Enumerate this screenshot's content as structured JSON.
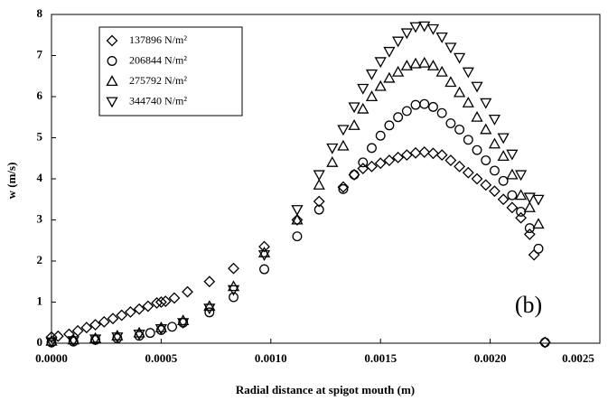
{
  "chart_data": {
    "type": "scatter",
    "y_label": "w (m/s)",
    "x_label": "Radial distance at spigot mouth (m)",
    "annotation": "(b)",
    "xlim": [
      0,
      0.0025
    ],
    "xticks": [
      {
        "value": 0,
        "label": "0.0000"
      },
      {
        "value": 0.0005,
        "label": "0.0005"
      },
      {
        "value": 0.001,
        "label": "0.0010"
      },
      {
        "value": 0.0015,
        "label": "0.0015"
      },
      {
        "value": 0.002,
        "label": "0.0020"
      },
      {
        "value": 0.0025,
        "label": "0.0025"
      }
    ],
    "ylim": [
      0,
      8
    ],
    "yticks": [
      0,
      1,
      2,
      3,
      4,
      5,
      6,
      7,
      8
    ],
    "legend": "top-left",
    "series": [
      {
        "name": "137896 N/m²",
        "color": "#000000",
        "marker": "diamond",
        "x": [
          0,
          3e-05,
          8e-05,
          0.00012,
          0.00016,
          0.0002,
          0.00024,
          0.00028,
          0.00032,
          0.00036,
          0.0004,
          0.00044,
          0.00048,
          0.0005,
          0.00052,
          0.00056,
          0.00062,
          0.00072,
          0.00083,
          0.00097,
          0.00112,
          0.00122,
          0.00133,
          0.00138,
          0.00142,
          0.00146,
          0.0015,
          0.00154,
          0.00158,
          0.00162,
          0.00166,
          0.0017,
          0.00174,
          0.00178,
          0.00182,
          0.00186,
          0.0019,
          0.00194,
          0.00198,
          0.00202,
          0.00206,
          0.0021,
          0.00214,
          0.00218,
          0.0022,
          0.00225
        ],
        "values": [
          0.15,
          0.17,
          0.22,
          0.3,
          0.38,
          0.45,
          0.52,
          0.6,
          0.68,
          0.76,
          0.83,
          0.9,
          0.98,
          1.0,
          1.02,
          1.1,
          1.25,
          1.5,
          1.82,
          2.35,
          3.0,
          3.45,
          3.8,
          4.1,
          4.25,
          4.3,
          4.38,
          4.45,
          4.52,
          4.58,
          4.63,
          4.65,
          4.62,
          4.58,
          4.45,
          4.3,
          4.15,
          4.0,
          3.85,
          3.7,
          3.5,
          3.3,
          3.05,
          2.65,
          2.15,
          0.02
        ]
      },
      {
        "name": "206844 N/m²",
        "color": "#000000",
        "marker": "circle",
        "x": [
          0,
          0.0001,
          0.0002,
          0.0003,
          0.0004,
          0.00045,
          0.0005,
          0.00055,
          0.0006,
          0.00072,
          0.00083,
          0.00097,
          0.00112,
          0.00122,
          0.00133,
          0.00138,
          0.00142,
          0.00146,
          0.0015,
          0.00154,
          0.00158,
          0.00162,
          0.00166,
          0.0017,
          0.00174,
          0.00178,
          0.00182,
          0.00186,
          0.0019,
          0.00194,
          0.00198,
          0.00202,
          0.00206,
          0.0021,
          0.00214,
          0.00218,
          0.00222,
          0.00225
        ],
        "values": [
          0.02,
          0.04,
          0.08,
          0.12,
          0.18,
          0.25,
          0.32,
          0.4,
          0.5,
          0.75,
          1.12,
          1.8,
          2.6,
          3.25,
          3.75,
          4.1,
          4.4,
          4.75,
          5.05,
          5.3,
          5.5,
          5.65,
          5.8,
          5.82,
          5.75,
          5.6,
          5.35,
          5.2,
          4.95,
          4.7,
          4.45,
          4.2,
          3.95,
          3.6,
          3.2,
          2.8,
          2.3,
          0.02
        ]
      },
      {
        "name": "275792 N/m²",
        "color": "#000000",
        "marker": "triangle-up",
        "x": [
          0,
          0.0001,
          0.0002,
          0.0003,
          0.0004,
          0.0005,
          0.0006,
          0.00072,
          0.00083,
          0.00097,
          0.00112,
          0.00122,
          0.00128,
          0.00133,
          0.00138,
          0.00142,
          0.00146,
          0.0015,
          0.00154,
          0.00158,
          0.00162,
          0.00166,
          0.0017,
          0.00174,
          0.00178,
          0.00182,
          0.00186,
          0.0019,
          0.00194,
          0.00198,
          0.00202,
          0.00206,
          0.0021,
          0.00214,
          0.00218,
          0.00222
        ],
        "values": [
          0.05,
          0.08,
          0.12,
          0.18,
          0.25,
          0.38,
          0.55,
          0.9,
          1.38,
          2.2,
          3.0,
          3.85,
          4.4,
          4.8,
          5.3,
          5.7,
          6.0,
          6.25,
          6.45,
          6.6,
          6.75,
          6.8,
          6.82,
          6.75,
          6.6,
          6.35,
          6.1,
          5.85,
          5.5,
          5.2,
          4.85,
          4.55,
          4.1,
          3.6,
          3.3,
          2.9
        ]
      },
      {
        "name": "344740 N/m²",
        "color": "#000000",
        "marker": "triangle-down",
        "x": [
          0,
          0.0001,
          0.0002,
          0.0003,
          0.0004,
          0.0005,
          0.0006,
          0.00072,
          0.00083,
          0.00097,
          0.00112,
          0.00122,
          0.00128,
          0.00133,
          0.00138,
          0.00142,
          0.00146,
          0.0015,
          0.00154,
          0.00158,
          0.00162,
          0.00166,
          0.0017,
          0.00174,
          0.00178,
          0.00182,
          0.00186,
          0.0019,
          0.00194,
          0.00198,
          0.00202,
          0.00206,
          0.0021,
          0.00214,
          0.00218,
          0.00222
        ],
        "values": [
          0.03,
          0.06,
          0.1,
          0.15,
          0.22,
          0.35,
          0.5,
          0.85,
          1.3,
          2.15,
          3.25,
          4.1,
          4.75,
          5.2,
          5.75,
          6.2,
          6.55,
          6.85,
          7.1,
          7.35,
          7.55,
          7.7,
          7.72,
          7.65,
          7.45,
          7.2,
          6.95,
          6.6,
          6.25,
          5.85,
          5.45,
          5.0,
          4.6,
          4.1,
          3.55,
          3.5
        ]
      }
    ]
  }
}
